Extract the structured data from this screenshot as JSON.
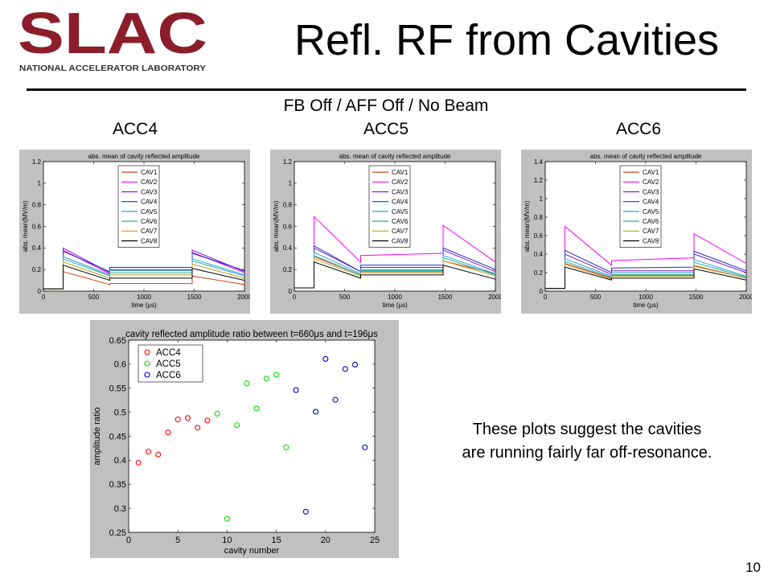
{
  "logo": {
    "wordmark": "SLAC",
    "tagline": "NATIONAL ACCELERATOR LABORATORY",
    "color": "#8c1d2a"
  },
  "slide": {
    "title": "Refl. RF from Cavities",
    "subtitle": "FB Off / AFF Off / No Beam",
    "col_headers": [
      "ACC4",
      "ACC5",
      "ACC6"
    ],
    "note_lines": [
      "These plots suggest the cavities",
      "are running fairly far off-resonance."
    ],
    "page_number": "10"
  },
  "chart_data": [
    {
      "type": "line",
      "title": "abs. mean of cavity reflected amplitude",
      "xlabel": "time (μs)",
      "ylabel": "abs. mean(MV/m)",
      "xlim": [
        0,
        2000
      ],
      "ylim": [
        0,
        1.2
      ],
      "xticks": [
        0,
        500,
        1000,
        1500,
        2000
      ],
      "yticks": [
        0,
        0.2,
        0.4,
        0.6,
        0.8,
        1,
        1.2
      ],
      "ytick_labels": [
        "0",
        "0.2",
        "0.4",
        "0.6",
        "0.8",
        "1",
        "1.2"
      ],
      "legend_position": "top-center",
      "series": [
        {
          "name": "CAV1",
          "color": "#d4401a",
          "x": [
            0,
            196,
            196,
            660,
            660,
            1480,
            1480,
            2000
          ],
          "y": [
            0.02,
            0.02,
            0.18,
            0.06,
            0.07,
            0.07,
            0.14,
            0.06
          ]
        },
        {
          "name": "CAV2",
          "color": "#ff00ff",
          "x": [
            0,
            196,
            196,
            660,
            660,
            1480,
            1480,
            2000
          ],
          "y": [
            0.02,
            0.02,
            0.38,
            0.16,
            0.19,
            0.19,
            0.36,
            0.17
          ]
        },
        {
          "name": "CAV3",
          "color": "#8020c0",
          "x": [
            0,
            196,
            196,
            660,
            660,
            1480,
            1480,
            2000
          ],
          "y": [
            0.02,
            0.02,
            0.4,
            0.17,
            0.2,
            0.2,
            0.38,
            0.18
          ]
        },
        {
          "name": "CAV4",
          "color": "#2030c0",
          "x": [
            0,
            196,
            196,
            660,
            660,
            1480,
            1480,
            2000
          ],
          "y": [
            0.02,
            0.02,
            0.37,
            0.18,
            0.22,
            0.22,
            0.35,
            0.19
          ]
        },
        {
          "name": "CAV5",
          "color": "#30a0e0",
          "x": [
            0,
            196,
            196,
            660,
            660,
            1480,
            1480,
            2000
          ],
          "y": [
            0.02,
            0.02,
            0.32,
            0.15,
            0.19,
            0.19,
            0.3,
            0.15
          ]
        },
        {
          "name": "CAV6",
          "color": "#20b0a0",
          "x": [
            0,
            196,
            196,
            660,
            660,
            1480,
            1480,
            2000
          ],
          "y": [
            0.02,
            0.02,
            0.3,
            0.14,
            0.17,
            0.17,
            0.28,
            0.14
          ]
        },
        {
          "name": "CAV7",
          "color": "#c0a020",
          "x": [
            0,
            196,
            196,
            660,
            660,
            1480,
            1480,
            2000
          ],
          "y": [
            0.02,
            0.02,
            0.27,
            0.12,
            0.15,
            0.15,
            0.25,
            0.12
          ]
        },
        {
          "name": "CAV8",
          "color": "#000000",
          "x": [
            0,
            196,
            196,
            660,
            660,
            1480,
            1480,
            2000
          ],
          "y": [
            0.02,
            0.02,
            0.24,
            0.1,
            0.12,
            0.12,
            0.21,
            0.1
          ]
        }
      ]
    },
    {
      "type": "line",
      "title": "abs. mean of cavity reflected amplitude",
      "xlabel": "time (μs)",
      "ylabel": "abs. mean(MV/m)",
      "xlim": [
        0,
        2000
      ],
      "ylim": [
        0,
        1.2
      ],
      "xticks": [
        0,
        500,
        1000,
        1500,
        2000
      ],
      "yticks": [
        0,
        0.2,
        0.4,
        0.6,
        0.8,
        1,
        1.2
      ],
      "ytick_labels": [
        "0",
        "0.2",
        "0.4",
        "0.6",
        "0.8",
        "1",
        "1.2"
      ],
      "legend_position": "top-center",
      "series": [
        {
          "name": "CAV1",
          "color": "#d4401a",
          "x": [
            0,
            196,
            196,
            660,
            660,
            1480,
            1480,
            2000
          ],
          "y": [
            0.03,
            0.03,
            0.32,
            0.15,
            0.18,
            0.18,
            0.28,
            0.16
          ]
        },
        {
          "name": "CAV2",
          "color": "#ff00ff",
          "x": [
            0,
            196,
            196,
            660,
            660,
            1480,
            1480,
            2000
          ],
          "y": [
            0.03,
            0.03,
            0.69,
            0.27,
            0.33,
            0.35,
            0.61,
            0.27
          ]
        },
        {
          "name": "CAV3",
          "color": "#8020c0",
          "x": [
            0,
            196,
            196,
            660,
            660,
            1480,
            1480,
            2000
          ],
          "y": [
            0.03,
            0.03,
            0.4,
            0.18,
            0.22,
            0.22,
            0.38,
            0.18
          ]
        },
        {
          "name": "CAV4",
          "color": "#2030c0",
          "x": [
            0,
            196,
            196,
            660,
            660,
            1480,
            1480,
            2000
          ],
          "y": [
            0.03,
            0.03,
            0.42,
            0.18,
            0.24,
            0.24,
            0.4,
            0.2
          ]
        },
        {
          "name": "CAV5",
          "color": "#30a0e0",
          "x": [
            0,
            196,
            196,
            660,
            660,
            1480,
            1480,
            2000
          ],
          "y": [
            0.03,
            0.03,
            0.36,
            0.16,
            0.2,
            0.2,
            0.33,
            0.16
          ]
        },
        {
          "name": "CAV6",
          "color": "#20b0a0",
          "x": [
            0,
            196,
            196,
            660,
            660,
            1480,
            1480,
            2000
          ],
          "y": [
            0.03,
            0.03,
            0.33,
            0.15,
            0.19,
            0.19,
            0.31,
            0.15
          ]
        },
        {
          "name": "CAV7",
          "color": "#c0a020",
          "x": [
            0,
            196,
            196,
            660,
            660,
            1480,
            1480,
            2000
          ],
          "y": [
            0.03,
            0.03,
            0.3,
            0.14,
            0.17,
            0.17,
            0.28,
            0.14
          ]
        },
        {
          "name": "CAV8",
          "color": "#000000",
          "x": [
            0,
            196,
            196,
            660,
            660,
            1480,
            1480,
            2000
          ],
          "y": [
            0.03,
            0.03,
            0.27,
            0.12,
            0.15,
            0.15,
            0.24,
            0.11
          ]
        }
      ]
    },
    {
      "type": "line",
      "title": "abs. mean of cavity reflected amplitude",
      "xlabel": "time (μs)",
      "ylabel": "abs. mean(MV/m)",
      "xlim": [
        0,
        2000
      ],
      "ylim": [
        0,
        1.4
      ],
      "xticks": [
        0,
        500,
        1000,
        1500,
        2000
      ],
      "yticks": [
        0,
        0.2,
        0.4,
        0.6,
        0.8,
        1,
        1.2,
        1.4
      ],
      "ytick_labels": [
        "0",
        "0.2",
        "0.4",
        "0.6",
        "0.8",
        "1",
        "1.2",
        "1.4"
      ],
      "legend_position": "top-center",
      "series": [
        {
          "name": "CAV1",
          "color": "#d4401a",
          "x": [
            0,
            196,
            196,
            660,
            660,
            1480,
            1480,
            2000
          ],
          "y": [
            0.03,
            0.03,
            0.3,
            0.14,
            0.17,
            0.17,
            0.27,
            0.14
          ]
        },
        {
          "name": "CAV2",
          "color": "#ff00ff",
          "x": [
            0,
            196,
            196,
            660,
            660,
            1480,
            1480,
            2000
          ],
          "y": [
            0.03,
            0.03,
            0.7,
            0.28,
            0.33,
            0.36,
            0.62,
            0.3
          ]
        },
        {
          "name": "CAV3",
          "color": "#8020c0",
          "x": [
            0,
            196,
            196,
            660,
            660,
            1480,
            1480,
            2000
          ],
          "y": [
            0.03,
            0.03,
            0.4,
            0.18,
            0.22,
            0.22,
            0.4,
            0.2
          ]
        },
        {
          "name": "CAV4",
          "color": "#2030c0",
          "x": [
            0,
            196,
            196,
            660,
            660,
            1480,
            1480,
            2000
          ],
          "y": [
            0.03,
            0.03,
            0.44,
            0.2,
            0.25,
            0.26,
            0.43,
            0.22
          ]
        },
        {
          "name": "CAV5",
          "color": "#30a0e0",
          "x": [
            0,
            196,
            196,
            660,
            660,
            1480,
            1480,
            2000
          ],
          "y": [
            0.03,
            0.03,
            0.35,
            0.16,
            0.2,
            0.2,
            0.34,
            0.16
          ]
        },
        {
          "name": "CAV6",
          "color": "#20b0a0",
          "x": [
            0,
            196,
            196,
            660,
            660,
            1480,
            1480,
            2000
          ],
          "y": [
            0.03,
            0.03,
            0.32,
            0.15,
            0.18,
            0.18,
            0.31,
            0.15
          ]
        },
        {
          "name": "CAV7",
          "color": "#c0a020",
          "x": [
            0,
            196,
            196,
            660,
            660,
            1480,
            1480,
            2000
          ],
          "y": [
            0.03,
            0.03,
            0.29,
            0.13,
            0.16,
            0.16,
            0.28,
            0.14
          ]
        },
        {
          "name": "CAV8",
          "color": "#000000",
          "x": [
            0,
            196,
            196,
            660,
            660,
            1480,
            1480,
            2000
          ],
          "y": [
            0.03,
            0.03,
            0.26,
            0.12,
            0.14,
            0.14,
            0.24,
            0.12
          ]
        }
      ]
    },
    {
      "type": "scatter",
      "title": "cavity reflected amplitude ratio between t=660μs and t=196μs",
      "xlabel": "cavity number",
      "ylabel": "amplitude ratio",
      "xlim": [
        0,
        25
      ],
      "ylim": [
        0.25,
        0.65
      ],
      "xticks": [
        0,
        5,
        10,
        15,
        20,
        25
      ],
      "yticks": [
        0.25,
        0.3,
        0.35,
        0.4,
        0.45,
        0.5,
        0.55,
        0.6,
        0.65
      ],
      "ytick_labels": [
        "0.25",
        "0.3",
        "0.35",
        "0.4",
        "0.45",
        "0.5",
        "0.55",
        "0.6",
        "0.65"
      ],
      "legend_position": "top-left",
      "series": [
        {
          "name": "ACC4",
          "color": "#ff0000",
          "x": [
            1,
            2,
            3,
            4,
            5,
            6,
            7,
            8
          ],
          "y": [
            0.395,
            0.418,
            0.412,
            0.458,
            0.485,
            0.488,
            0.468,
            0.483
          ]
        },
        {
          "name": "ACC5",
          "color": "#00dd00",
          "x": [
            9,
            10,
            11,
            12,
            13,
            14,
            15,
            16
          ],
          "y": [
            0.497,
            0.278,
            0.473,
            0.56,
            0.508,
            0.57,
            0.578,
            0.427
          ]
        },
        {
          "name": "ACC6",
          "color": "#0000cc",
          "x": [
            17,
            18,
            19,
            20,
            21,
            22,
            23,
            24
          ],
          "y": [
            0.546,
            0.293,
            0.501,
            0.611,
            0.526,
            0.59,
            0.599,
            0.427
          ]
        }
      ]
    }
  ]
}
